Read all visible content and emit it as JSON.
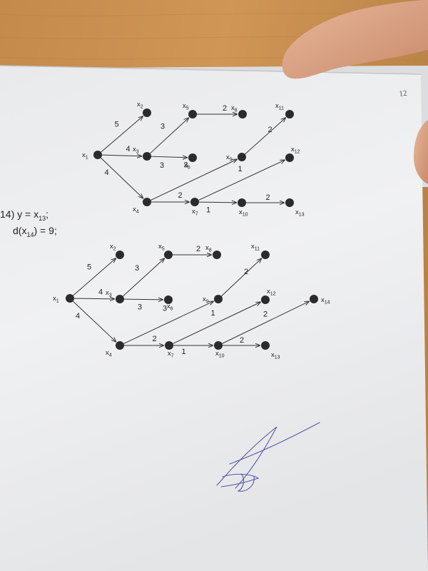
{
  "page_mark": "12",
  "formula": {
    "line1": "14) y = x",
    "line1_sub": "13",
    "line1_end": ";",
    "line2": "d(x",
    "line2_sub": "14",
    "line2_end": ")  = 9;"
  },
  "graphs": [
    {
      "id": "graph-top",
      "nodes": [
        {
          "id": "x1",
          "label": "x",
          "sub": "1"
        },
        {
          "id": "x2",
          "label": "x",
          "sub": "2"
        },
        {
          "id": "x3",
          "label": "x",
          "sub": "3"
        },
        {
          "id": "x4",
          "label": "x",
          "sub": "4"
        },
        {
          "id": "x5",
          "label": "x",
          "sub": "5"
        },
        {
          "id": "x6",
          "label": "x",
          "sub": "6"
        },
        {
          "id": "x7",
          "label": "x",
          "sub": "7"
        },
        {
          "id": "x8",
          "label": "x",
          "sub": "8"
        },
        {
          "id": "x9",
          "label": "x",
          "sub": "9"
        },
        {
          "id": "x10",
          "label": "x",
          "sub": "10"
        },
        {
          "id": "x11",
          "label": "x",
          "sub": "11"
        },
        {
          "id": "x12",
          "label": "x",
          "sub": "12"
        },
        {
          "id": "x13",
          "label": "x",
          "sub": "13"
        }
      ],
      "edges": [
        {
          "from": "x1",
          "to": "x2",
          "weight": "5"
        },
        {
          "from": "x1",
          "to": "x3",
          "weight": "4"
        },
        {
          "from": "x1",
          "to": "x4",
          "weight": "4"
        },
        {
          "from": "x3",
          "to": "x5",
          "weight": "3"
        },
        {
          "from": "x3",
          "to": "x6",
          "weight": "3"
        },
        {
          "from": "x5",
          "to": "x8",
          "weight": "2"
        },
        {
          "from": "x4",
          "to": "x7",
          "weight": "2"
        },
        {
          "from": "x4",
          "to": "x9",
          "weight": "3"
        },
        {
          "from": "x9",
          "to": "x11",
          "weight": "2"
        },
        {
          "from": "x7",
          "to": "x10",
          "weight": "1"
        },
        {
          "from": "x7",
          "to": "x12",
          "weight": "1"
        },
        {
          "from": "x10",
          "to": "x13",
          "weight": "2"
        }
      ]
    },
    {
      "id": "graph-bottom",
      "nodes": [
        {
          "id": "x1",
          "label": "x",
          "sub": "1"
        },
        {
          "id": "x2",
          "label": "x",
          "sub": "2"
        },
        {
          "id": "x3",
          "label": "x",
          "sub": "3"
        },
        {
          "id": "x4",
          "label": "x",
          "sub": "4"
        },
        {
          "id": "x5",
          "label": "x",
          "sub": "5"
        },
        {
          "id": "x6",
          "label": "x",
          "sub": "6"
        },
        {
          "id": "x7",
          "label": "x",
          "sub": "7"
        },
        {
          "id": "x8",
          "label": "x",
          "sub": "8"
        },
        {
          "id": "x9",
          "label": "x",
          "sub": "9"
        },
        {
          "id": "x10",
          "label": "x",
          "sub": "10"
        },
        {
          "id": "x11",
          "label": "x",
          "sub": "11"
        },
        {
          "id": "x12",
          "label": "x",
          "sub": "12"
        },
        {
          "id": "x13",
          "label": "x",
          "sub": "13"
        },
        {
          "id": "x14",
          "label": "x",
          "sub": "14"
        }
      ],
      "edges": [
        {
          "from": "x1",
          "to": "x2",
          "weight": "5"
        },
        {
          "from": "x1",
          "to": "x3",
          "weight": "4"
        },
        {
          "from": "x1",
          "to": "x4",
          "weight": "4"
        },
        {
          "from": "x3",
          "to": "x5",
          "weight": "3"
        },
        {
          "from": "x3",
          "to": "x6",
          "weight": "3"
        },
        {
          "from": "x5",
          "to": "x8",
          "weight": "2"
        },
        {
          "from": "x4",
          "to": "x7",
          "weight": "2"
        },
        {
          "from": "x4",
          "to": "x9",
          "weight": "3"
        },
        {
          "from": "x9",
          "to": "x11",
          "weight": "2"
        },
        {
          "from": "x7",
          "to": "x10",
          "weight": "1"
        },
        {
          "from": "x7",
          "to": "x12",
          "weight": "1"
        },
        {
          "from": "x10",
          "to": "x13",
          "weight": "2"
        },
        {
          "from": "x10",
          "to": "x14",
          "weight": "2"
        }
      ]
    }
  ]
}
